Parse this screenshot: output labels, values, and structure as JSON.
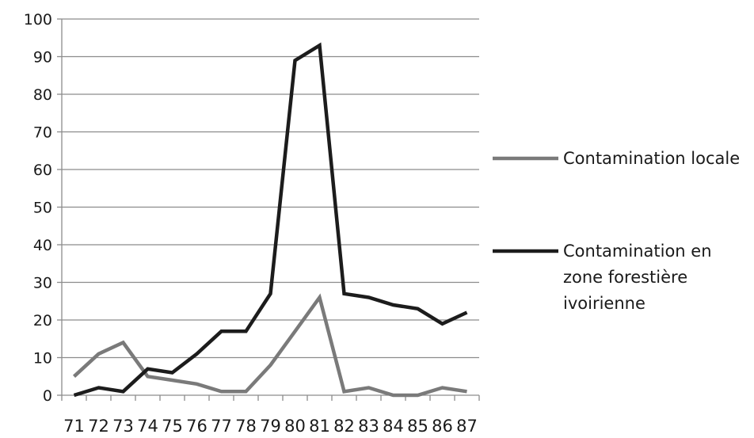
{
  "chart_data": {
    "type": "line",
    "title": "",
    "xlabel": "",
    "ylabel": "",
    "categories": [
      "71",
      "72",
      "73",
      "74",
      "75",
      "76",
      "77",
      "78",
      "79",
      "80",
      "81",
      "82",
      "83",
      "84",
      "85",
      "86",
      "87"
    ],
    "ylim": [
      0,
      100
    ],
    "yticks": [
      0,
      10,
      20,
      30,
      40,
      50,
      60,
      70,
      80,
      90,
      100
    ],
    "grid": "horizontal",
    "legend_position": "right",
    "series": [
      {
        "name": "Contamination locale",
        "legend_lines": [
          "Contamination locale"
        ],
        "color": "#7a7a7a",
        "values": [
          5,
          11,
          14,
          5,
          4,
          3,
          1,
          1,
          8,
          17,
          26,
          1,
          2,
          0,
          0,
          2,
          1
        ]
      },
      {
        "name": "Contamination en zone forestière ivoirienne",
        "legend_lines": [
          "Contamination en",
          "zone forestière",
          "ivoirienne"
        ],
        "color": "#1c1c1c",
        "values": [
          0,
          2,
          1,
          7,
          6,
          11,
          17,
          17,
          27,
          89,
          93,
          27,
          26,
          24,
          23,
          19,
          22
        ]
      }
    ]
  }
}
